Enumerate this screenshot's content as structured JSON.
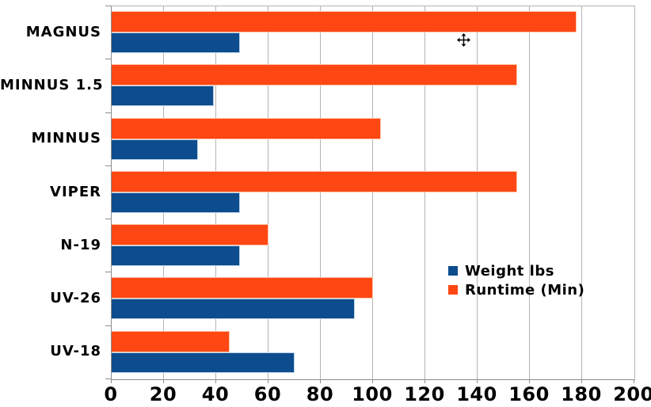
{
  "chart_data": {
    "type": "bar",
    "orientation": "horizontal",
    "title": "",
    "xlabel": "",
    "ylabel": "",
    "xlim": [
      0,
      200
    ],
    "x_ticks": [
      "0",
      "20",
      "40",
      "60",
      "80",
      "100",
      "120",
      "140",
      "160",
      "180",
      "200"
    ],
    "grid": true,
    "legend_position": "right-middle",
    "categories": [
      "MAGNUS",
      "MINNUS 1.5",
      "MINNUS",
      "VIPER",
      "N-19",
      "UV-26",
      "UV-18"
    ],
    "series": [
      {
        "name": "Weight lbs",
        "color": "#0d4c8d",
        "values": [
          49,
          39,
          33,
          49,
          49,
          93,
          70
        ]
      },
      {
        "name": "Runtime (Min)",
        "color": "#ff4714",
        "values": [
          178,
          155,
          103,
          155,
          60,
          100,
          45
        ]
      }
    ]
  },
  "legend": {
    "items": [
      {
        "label": "Weight lbs",
        "color": "#0d4c8d"
      },
      {
        "label": "Runtime (Min)",
        "color": "#ff4714"
      }
    ]
  },
  "cursor": {
    "name": "move-cursor"
  },
  "colors": {
    "gridline": "#b4b4b4",
    "axis": "#8c8c8c",
    "text": "#000000",
    "background": "#ffffff"
  }
}
